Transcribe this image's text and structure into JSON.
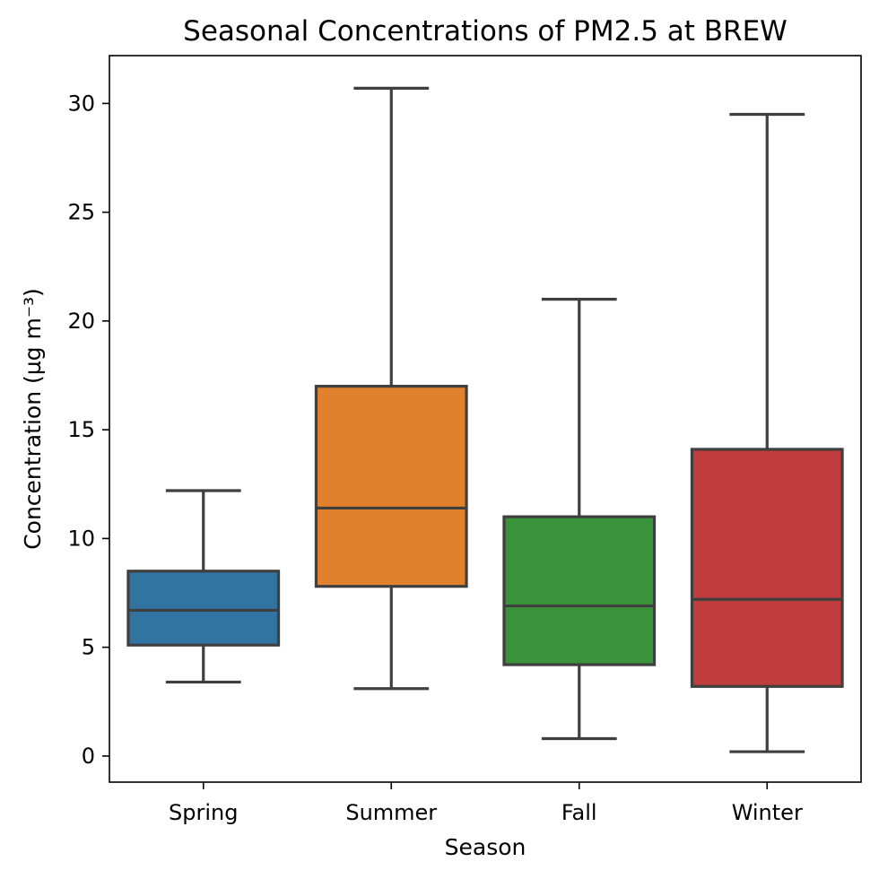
{
  "chart_data": {
    "type": "box",
    "title": "Seasonal Concentrations of PM2.5 at BREW",
    "xlabel": "Season",
    "ylabel": "Concentration (µg m⁻³)",
    "ylim": [
      -1.2,
      32.2
    ],
    "yticks": [
      0,
      5,
      10,
      15,
      20,
      25,
      30
    ],
    "grid": false,
    "categories": [
      "Spring",
      "Summer",
      "Fall",
      "Winter"
    ],
    "boxes": [
      {
        "category": "Spring",
        "whisker_low": 3.4,
        "q1": 5.1,
        "median": 6.7,
        "q3": 8.5,
        "whisker_high": 12.2,
        "color": "#3274a1"
      },
      {
        "category": "Summer",
        "whisker_low": 3.1,
        "q1": 7.8,
        "median": 11.4,
        "q3": 17.0,
        "whisker_high": 30.7,
        "color": "#e1812c"
      },
      {
        "category": "Fall",
        "whisker_low": 0.8,
        "q1": 4.2,
        "median": 6.9,
        "q3": 11.0,
        "whisker_high": 21.0,
        "color": "#3a923a"
      },
      {
        "category": "Winter",
        "whisker_low": 0.2,
        "q1": 3.2,
        "median": 7.2,
        "q3": 14.1,
        "whisker_high": 29.5,
        "color": "#c03d3e"
      }
    ]
  }
}
